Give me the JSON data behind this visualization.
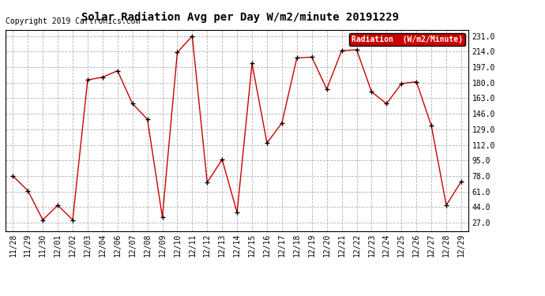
{
  "title": "Solar Radiation Avg per Day W/m2/minute 20191229",
  "copyright": "Copyright 2019 Cartronics.com",
  "legend_label": "Radiation  (W/m2/Minute)",
  "dates": [
    "11/28",
    "11/29",
    "11/30",
    "12/01",
    "12/02",
    "12/03",
    "12/04",
    "12/06",
    "12/07",
    "12/08",
    "12/09",
    "12/10",
    "12/11",
    "12/12",
    "12/13",
    "12/14",
    "12/15",
    "12/16",
    "12/17",
    "12/18",
    "12/19",
    "12/20",
    "12/21",
    "12/22",
    "12/23",
    "12/24",
    "12/25",
    "12/26",
    "12/27",
    "12/28",
    "12/29"
  ],
  "values": [
    78,
    62,
    30,
    46,
    30,
    183,
    186,
    193,
    157,
    140,
    33,
    213,
    231,
    71,
    96,
    38,
    201,
    114,
    136,
    207,
    208,
    173,
    215,
    216,
    170,
    157,
    179,
    181,
    133,
    46,
    72
  ],
  "y_ticks": [
    27.0,
    44.0,
    61.0,
    78.0,
    95.0,
    112.0,
    129.0,
    146.0,
    163.0,
    180.0,
    197.0,
    214.0,
    231.0
  ],
  "ylim": [
    18,
    238
  ],
  "line_color": "#cc0000",
  "marker": "+",
  "marker_color": "#000000",
  "marker_size": 4,
  "marker_linewidth": 1.0,
  "background_color": "#ffffff",
  "plot_background": "#ffffff",
  "grid_color": "#aaaaaa",
  "legend_bg": "#cc0000",
  "legend_text_color": "#ffffff",
  "title_fontsize": 10,
  "tick_fontsize": 7,
  "copyright_fontsize": 7,
  "legend_fontsize": 7
}
